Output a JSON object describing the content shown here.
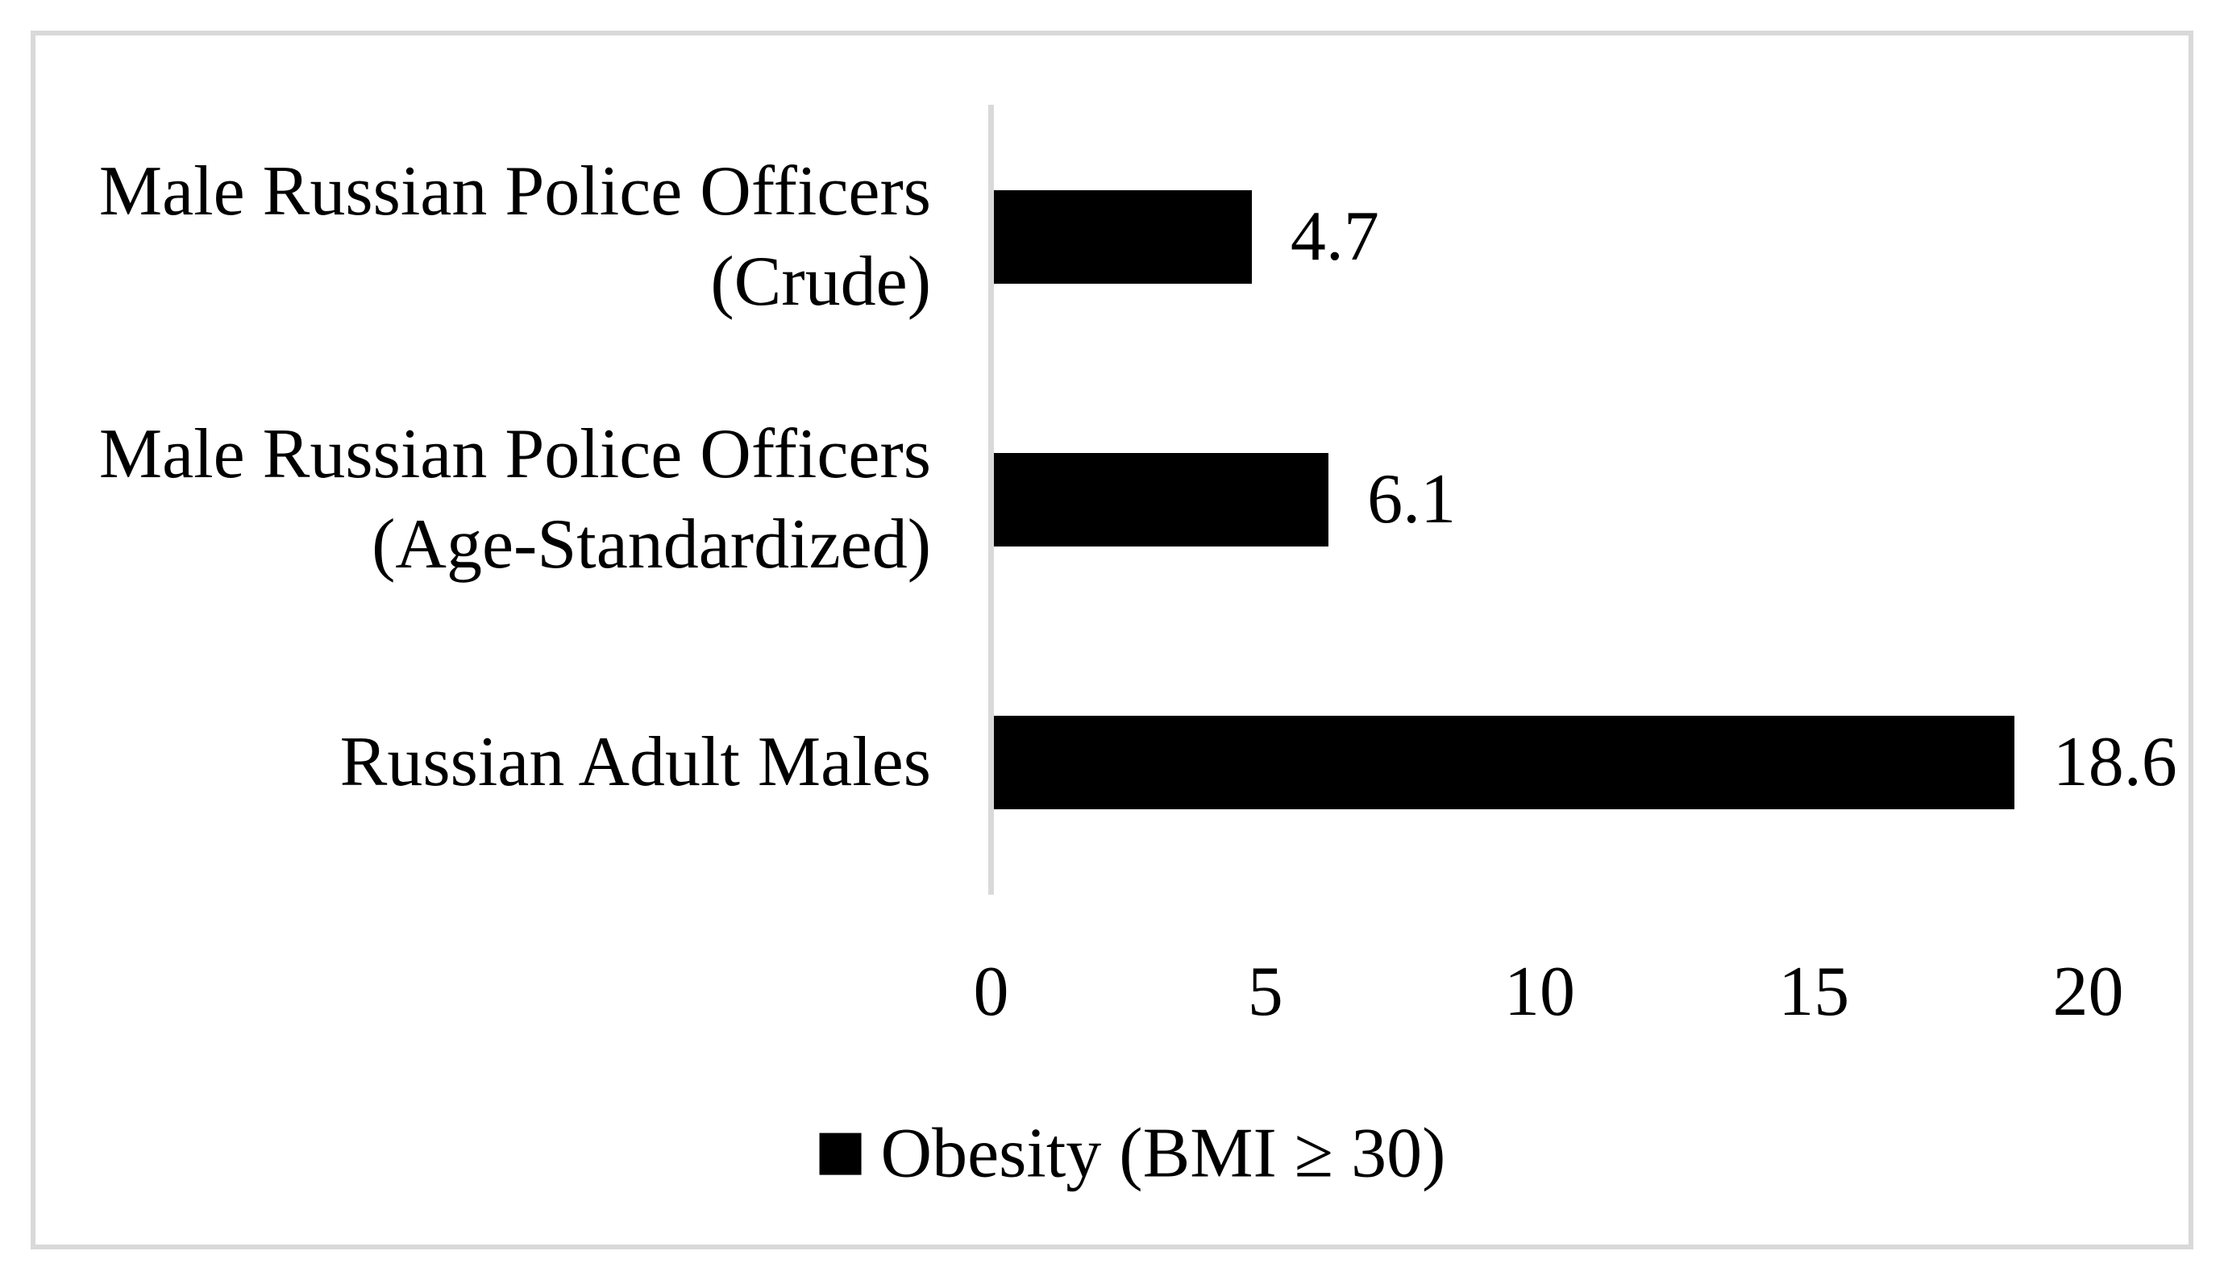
{
  "figure": {
    "background": "#ffffff",
    "border_color": "#d9d9d9",
    "axis_line_color": "#d9d9d9"
  },
  "legend": {
    "label": "Obesity (BMI ≥ 30)"
  },
  "chart_data": {
    "type": "bar",
    "orientation": "horizontal",
    "title": "",
    "xlabel": "",
    "ylabel": "",
    "categories": [
      "Male Russian Police Officers (Crude)",
      "Male Russian Police Officers (Age-Standardized)",
      "Russian Adult Males"
    ],
    "category_lines": [
      [
        "Male Russian Police Officers",
        "(Crude)"
      ],
      [
        "Male Russian Police Officers",
        "(Age-Standardized)"
      ],
      [
        "Russian Adult Males"
      ]
    ],
    "series": [
      {
        "name": "Obesity (BMI ≥ 30)",
        "values": [
          4.7,
          6.1,
          18.6
        ]
      }
    ],
    "data_labels": [
      "4.7",
      "6.1",
      "18.6"
    ],
    "x_ticks": [
      0,
      5,
      10,
      15,
      20
    ],
    "xlim": [
      0,
      20
    ],
    "bar_color": "#000000",
    "grid": false,
    "legend_position": "bottom-center"
  }
}
